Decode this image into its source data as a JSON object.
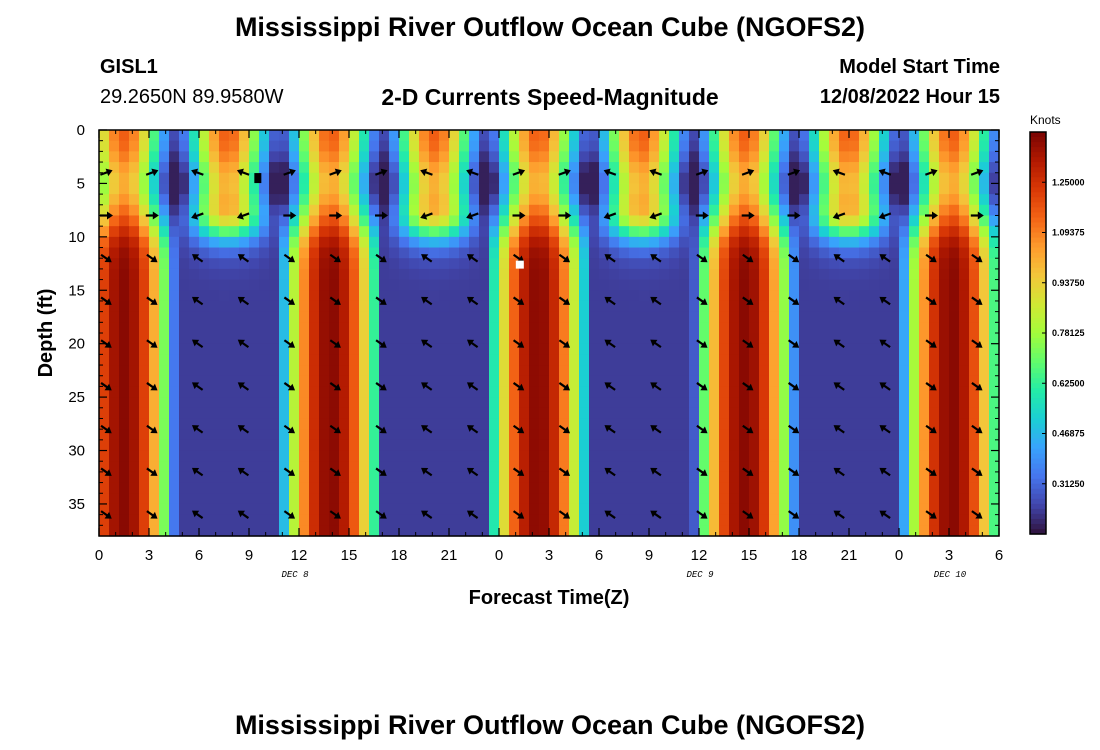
{
  "header": {
    "title": "Mississippi River Outflow Ocean Cube (NGOFS2)",
    "station_id": "GISL1",
    "station_coords": "29.2650N  89.9580W",
    "subtitle": "2-D Currents Speed-Magnitude",
    "model_start_label": "Model Start Time",
    "model_start_value": "12/08/2022 Hour 15"
  },
  "footer": {
    "title": "Mississippi River Outflow Ocean Cube (NGOFS2)"
  },
  "chart_data": {
    "type": "heatmap",
    "title": "2-D Currents Speed-Magnitude",
    "xlabel": "Forecast Time(Z)",
    "ylabel": "Depth (ft)",
    "x_range_hours": [
      0,
      54
    ],
    "xlim": [
      0,
      54
    ],
    "ylim": [
      0,
      38
    ],
    "x_tick_labels": [
      "0",
      "3",
      "6",
      "9",
      "12",
      "15",
      "18",
      "21",
      "0",
      "3",
      "6",
      "9",
      "12",
      "15",
      "18",
      "21",
      "0",
      "3",
      "6"
    ],
    "y_ticks": [
      0,
      5,
      10,
      15,
      20,
      25,
      30,
      35
    ],
    "date_labels": [
      {
        "label": "DEC 8",
        "hour": 12
      },
      {
        "label": "DEC 9",
        "hour": 36
      },
      {
        "label": "DEC 10",
        "hour": 51
      }
    ],
    "colorbar": {
      "units": "Knots",
      "min": 0.15625,
      "max": 1.40625,
      "tick_values": [
        0.3125,
        0.46875,
        0.625,
        0.78125,
        0.9375,
        1.09375,
        1.25
      ],
      "tick_labels": [
        "0.31250",
        "0.46875",
        "0.62500",
        "0.78125",
        "0.93750",
        "1.09375",
        "1.25000"
      ]
    },
    "colors": [
      "#30123b",
      "#4145ab",
      "#4675ed",
      "#39a2fc",
      "#1bcfd4",
      "#24eca6",
      "#61fc6c",
      "#a4fc3b",
      "#d1e834",
      "#f3c63a",
      "#fe9b2d",
      "#f36315",
      "#d93806",
      "#b11901",
      "#7a0403"
    ],
    "marker_colors": {
      "min_marker": "#000000",
      "max_marker": "#ffffff"
    }
  }
}
